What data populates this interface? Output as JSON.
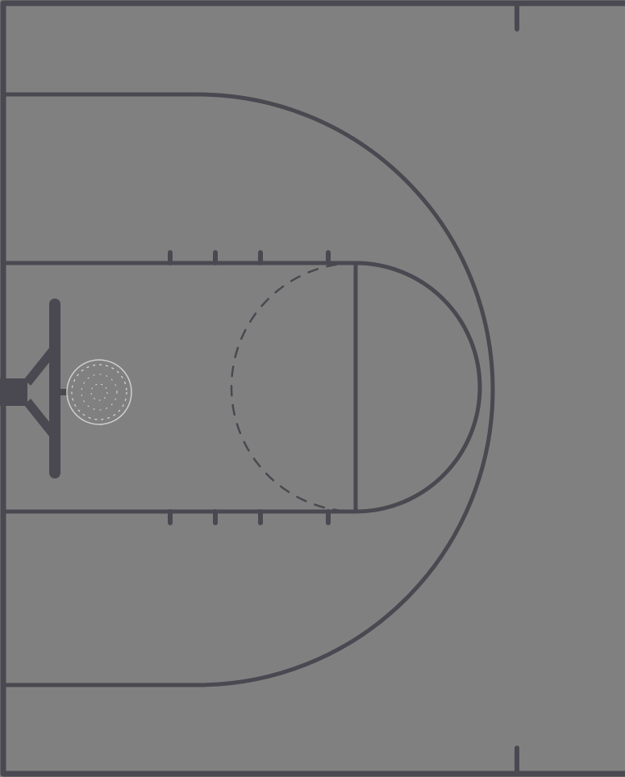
{
  "diagram": {
    "type": "basketball-half-court",
    "colors": {
      "floor": "#808080",
      "lines": "#4a4850",
      "hoop": "#d0d0d0"
    },
    "elements": [
      "court-boundary",
      "three-point-line",
      "free-throw-lane",
      "free-throw-circle-top",
      "free-throw-circle-bottom-dashed",
      "lane-hash-marks",
      "backboard",
      "backboard-support",
      "hoop",
      "net",
      "sideline-tick-marks"
    ]
  }
}
